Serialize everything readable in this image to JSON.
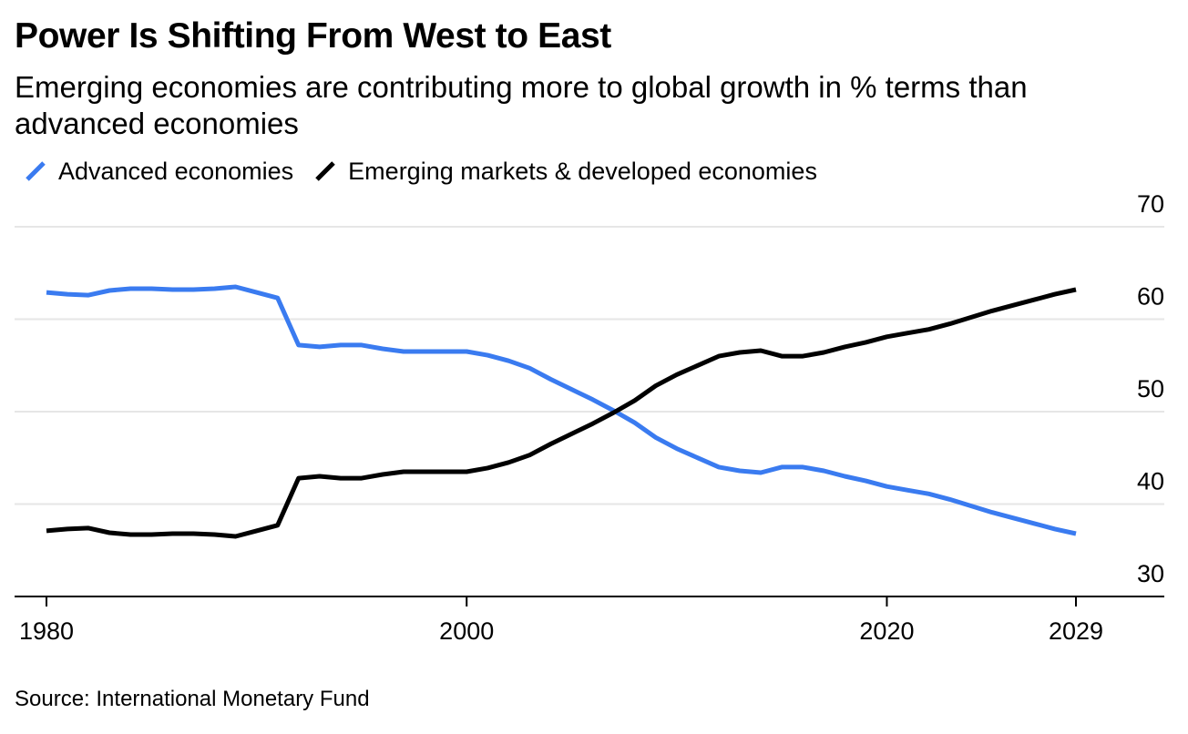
{
  "header": {
    "title": "Power Is Shifting From West to East",
    "subtitle": "Emerging economies are contributing more to global growth in % terms than advanced economies"
  },
  "footer": {
    "source": "Source: International Monetary Fund"
  },
  "colors": {
    "advanced": "#3a7bf0",
    "emerging": "#000000",
    "grid": "#e6e6e6",
    "axis": "#000000"
  },
  "chart_data": {
    "type": "line",
    "title": "Power Is Shifting From West to East",
    "subtitle": "Emerging economies are contributing more to global growth in % terms than advanced economies",
    "xlabel": "",
    "ylabel": "",
    "xlim": [
      1980,
      2029
    ],
    "ylim": [
      30,
      70
    ],
    "x_ticks": [
      1980,
      2000,
      2020,
      2029
    ],
    "y_ticks": [
      30,
      40,
      50,
      60,
      70
    ],
    "grid": "horizontal",
    "y_axis_side": "right",
    "legend_position": "top-left",
    "x": [
      1980,
      1981,
      1982,
      1983,
      1984,
      1985,
      1986,
      1987,
      1988,
      1989,
      1990,
      1991,
      1992,
      1993,
      1994,
      1995,
      1996,
      1997,
      1998,
      1999,
      2000,
      2001,
      2002,
      2003,
      2004,
      2005,
      2006,
      2007,
      2008,
      2009,
      2010,
      2011,
      2012,
      2013,
      2014,
      2015,
      2016,
      2017,
      2018,
      2019,
      2020,
      2021,
      2022,
      2023,
      2024,
      2025,
      2026,
      2027,
      2028,
      2029
    ],
    "series": [
      {
        "name": "Advanced economies",
        "color": "#3a7bf0",
        "values": [
          62.9,
          62.7,
          62.6,
          63.1,
          63.3,
          63.3,
          63.2,
          63.2,
          63.3,
          63.5,
          62.9,
          62.3,
          57.2,
          57.0,
          57.2,
          57.2,
          56.8,
          56.5,
          56.5,
          56.5,
          56.5,
          56.1,
          55.5,
          54.7,
          53.5,
          52.4,
          51.3,
          50.1,
          48.8,
          47.2,
          46.0,
          45.0,
          44.0,
          43.6,
          43.4,
          44.0,
          44.0,
          43.6,
          43.0,
          42.5,
          41.9,
          41.5,
          41.1,
          40.5,
          39.8,
          39.1,
          38.5,
          37.9,
          37.3,
          36.8
        ]
      },
      {
        "name": "Emerging markets & developed economies",
        "color": "#000000",
        "values": [
          37.1,
          37.3,
          37.4,
          36.9,
          36.7,
          36.7,
          36.8,
          36.8,
          36.7,
          36.5,
          37.1,
          37.7,
          42.8,
          43.0,
          42.8,
          42.8,
          43.2,
          43.5,
          43.5,
          43.5,
          43.5,
          43.9,
          44.5,
          45.3,
          46.5,
          47.6,
          48.7,
          49.9,
          51.2,
          52.8,
          54.0,
          55.0,
          56.0,
          56.4,
          56.6,
          56.0,
          56.0,
          56.4,
          57.0,
          57.5,
          58.1,
          58.5,
          58.9,
          59.5,
          60.2,
          60.9,
          61.5,
          62.1,
          62.7,
          63.2
        ]
      }
    ]
  }
}
